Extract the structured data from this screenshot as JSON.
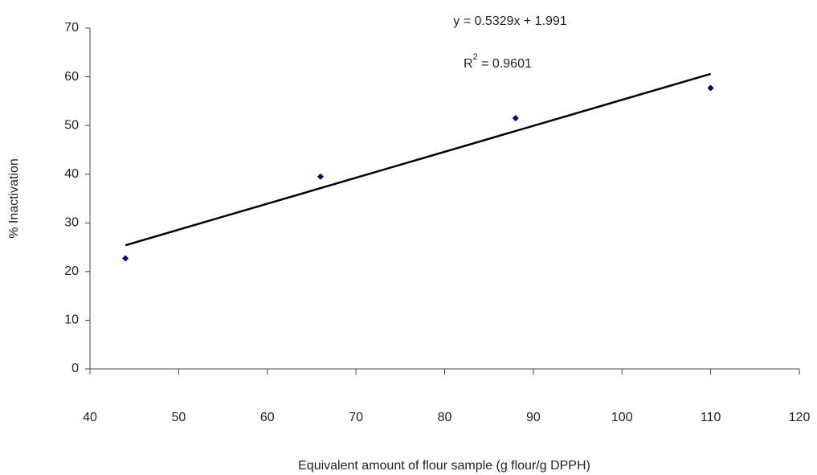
{
  "chart_data": {
    "type": "scatter",
    "x_label": "Equivalent amount of flour sample (g flour/g DPPH)",
    "y_label": "% Inactivation",
    "equation_label": "y = 0.5329x + 1.991",
    "r_squared_label": [
      "R",
      "2",
      " = 0.9601"
    ],
    "series": [
      {
        "color": "#000080",
        "x": [
          44,
          66,
          88,
          110
        ],
        "values": [
          22.7,
          39.5,
          51.5,
          57.7
        ]
      }
    ],
    "trendline": {
      "color": "#000000",
      "x": [
        44,
        110
      ],
      "values": [
        25.4,
        60.6
      ]
    },
    "xlim": [
      40,
      120
    ],
    "xticks": [
      40,
      50,
      60,
      70,
      80,
      90,
      100,
      110,
      120
    ],
    "ylim": [
      0,
      70
    ],
    "yticks": [
      0,
      10,
      20,
      30,
      40,
      50,
      60,
      70
    ],
    "grid": false
  }
}
